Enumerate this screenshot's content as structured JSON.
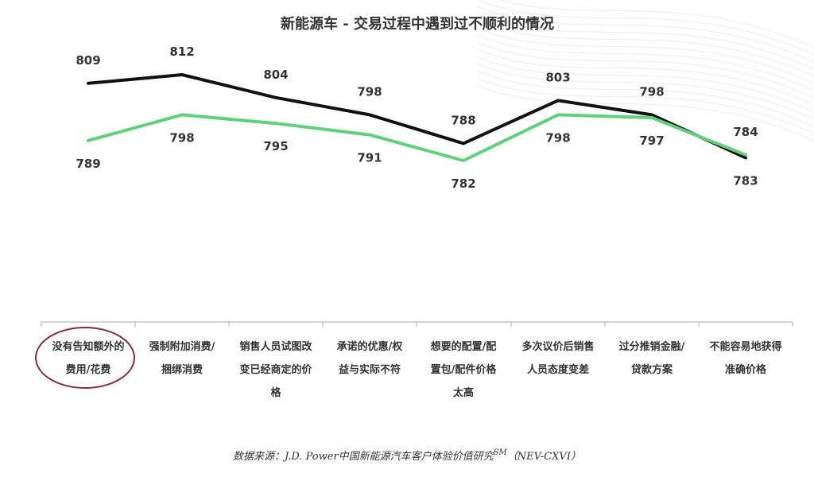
{
  "chart_data": {
    "type": "line",
    "title": "新能源车 - 交易过程中遇到过不顺利的情况",
    "categories": [
      [
        "没有告知额外的",
        "费用/花费"
      ],
      [
        "强制附加消费/",
        "捆绑消费"
      ],
      [
        "销售人员试图改",
        "变已经商定的价",
        "格"
      ],
      [
        "承诺的优惠/权",
        "益与实际不符"
      ],
      [
        "想要的配置/配",
        "置包/配件价格",
        "太高"
      ],
      [
        "多次议价后销售",
        "人员态度变差"
      ],
      [
        "过分推销金融/",
        "贷款方案"
      ],
      [
        "不能容易地获得",
        "准确价格"
      ]
    ],
    "series": [
      {
        "key": "black",
        "color": "#111111",
        "values": [
          809,
          812,
          804,
          798,
          788,
          803,
          798,
          783
        ],
        "labels": [
          "809",
          "812",
          "804",
          "798",
          "788",
          "803",
          "798",
          "783"
        ]
      },
      {
        "key": "green",
        "color": "#5fd17a",
        "values": [
          789,
          798,
          795,
          791,
          782,
          798,
          797,
          784
        ],
        "labels": [
          "789",
          "798",
          "795",
          "791",
          "782",
          "798",
          "797",
          "784"
        ]
      }
    ],
    "highlight_category_index": 0,
    "highlight_color": "#8b2a3c",
    "axis_color": "#bbbbbb",
    "grid": false,
    "legend": "none"
  },
  "source": {
    "prefix": "数据来源：J.D. Power中国新能源汽车客户体验价值研究",
    "superscript": "SM",
    "suffix": "（NEV-CXVI）"
  }
}
